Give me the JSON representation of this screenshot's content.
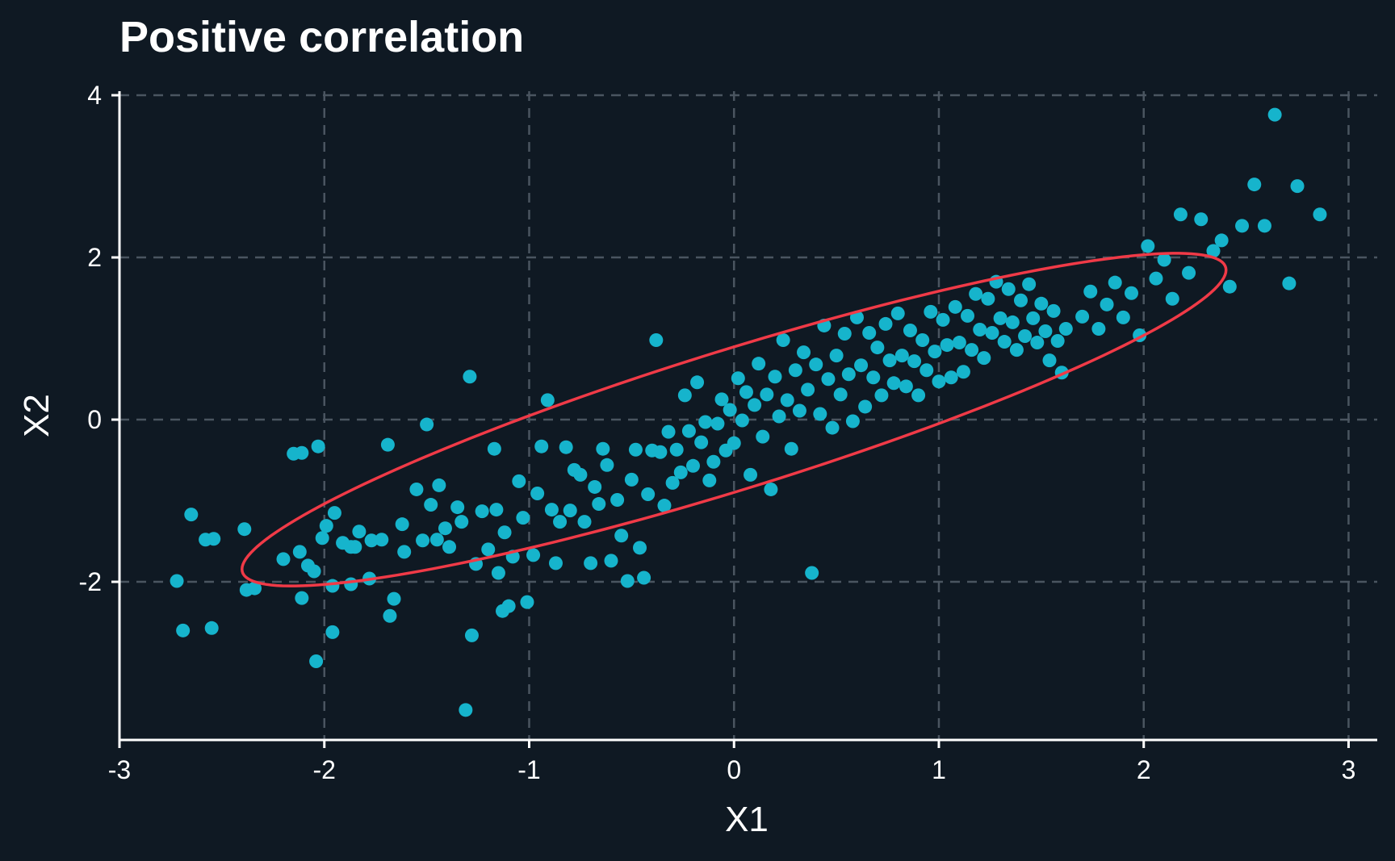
{
  "chart_data": {
    "type": "scatter",
    "title": "Positive correlation",
    "xlabel": "X1",
    "ylabel": "X2",
    "xlim": [
      -3,
      3.14
    ],
    "ylim": [
      -3.95,
      4.05
    ],
    "xticks": [
      -3,
      -2,
      -1,
      0,
      1,
      2,
      3
    ],
    "xtick_labels": [
      "-3",
      "-2",
      "-1",
      "0",
      "1",
      "2",
      "3"
    ],
    "yticks": [
      -2,
      0,
      2,
      4
    ],
    "ytick_labels": [
      "-2",
      "0",
      "2",
      "4"
    ],
    "grid": true,
    "grid_style": "dashed",
    "legend": false,
    "colors": {
      "background": "#0f1923",
      "points": "#16b4cc",
      "ellipse": "#f03a47",
      "grid": "#4a5560",
      "axis": "#ffffff",
      "text": "#ffffff"
    },
    "series": [
      {
        "values_generated": true,
        "points": [
          [
            -2.72,
            -1.99
          ],
          [
            -2.69,
            -2.6
          ],
          [
            -2.65,
            -1.17
          ],
          [
            -2.58,
            -1.48
          ],
          [
            -2.55,
            -2.57
          ],
          [
            -2.54,
            -1.47
          ],
          [
            -2.39,
            -1.35
          ],
          [
            -2.38,
            -2.1
          ],
          [
            -2.34,
            -2.08
          ],
          [
            -2.2,
            -1.72
          ],
          [
            -2.15,
            -0.42
          ],
          [
            -2.12,
            -1.63
          ],
          [
            -2.11,
            -2.2
          ],
          [
            -2.11,
            -0.41
          ],
          [
            -2.08,
            -1.8
          ],
          [
            -2.05,
            -1.87
          ],
          [
            -2.04,
            -2.98
          ],
          [
            -2.03,
            -0.33
          ],
          [
            -2.01,
            -1.46
          ],
          [
            -1.99,
            -1.31
          ],
          [
            -1.96,
            -2.05
          ],
          [
            -1.96,
            -2.62
          ],
          [
            -1.95,
            -1.15
          ],
          [
            -1.91,
            -1.52
          ],
          [
            -1.87,
            -1.57
          ],
          [
            -1.87,
            -2.03
          ],
          [
            -1.85,
            -1.57
          ],
          [
            -1.83,
            -1.38
          ],
          [
            -1.78,
            -1.96
          ],
          [
            -1.77,
            -1.49
          ],
          [
            -1.72,
            -1.48
          ],
          [
            -1.69,
            -0.31
          ],
          [
            -1.68,
            -2.42
          ],
          [
            -1.66,
            -2.21
          ],
          [
            -1.62,
            -1.29
          ],
          [
            -1.61,
            -1.63
          ],
          [
            -1.55,
            -0.86
          ],
          [
            -1.52,
            -1.49
          ],
          [
            -1.5,
            -0.06
          ],
          [
            -1.48,
            -1.05
          ],
          [
            -1.45,
            -1.48
          ],
          [
            -1.44,
            -0.81
          ],
          [
            -1.41,
            -1.34
          ],
          [
            -1.39,
            -1.57
          ],
          [
            -1.35,
            -1.08
          ],
          [
            -1.33,
            -1.26
          ],
          [
            -1.31,
            -3.58
          ],
          [
            -1.29,
            0.53
          ],
          [
            -1.28,
            -2.66
          ],
          [
            -1.26,
            -1.78
          ],
          [
            -1.23,
            -1.13
          ],
          [
            -1.2,
            -1.6
          ],
          [
            -1.17,
            -0.36
          ],
          [
            -1.16,
            -1.11
          ],
          [
            -1.15,
            -1.89
          ],
          [
            -1.13,
            -2.36
          ],
          [
            -1.12,
            -1.39
          ],
          [
            -1.1,
            -2.3
          ],
          [
            -1.08,
            -1.69
          ],
          [
            -1.05,
            -0.76
          ],
          [
            -1.03,
            -1.21
          ],
          [
            -1.01,
            -2.25
          ],
          [
            -0.98,
            -1.67
          ],
          [
            -0.96,
            -0.91
          ],
          [
            -0.94,
            -0.33
          ],
          [
            -0.91,
            0.24
          ],
          [
            -0.89,
            -1.11
          ],
          [
            -0.87,
            -1.77
          ],
          [
            -0.85,
            -1.26
          ],
          [
            -0.82,
            -0.34
          ],
          [
            -0.8,
            -1.12
          ],
          [
            -0.78,
            -0.62
          ],
          [
            -0.75,
            -0.68
          ],
          [
            -0.73,
            -1.26
          ],
          [
            -0.7,
            -1.77
          ],
          [
            -0.68,
            -0.83
          ],
          [
            -0.66,
            -1.04
          ],
          [
            -0.64,
            -0.36
          ],
          [
            -0.62,
            -0.56
          ],
          [
            -0.6,
            -1.74
          ],
          [
            -0.57,
            -0.99
          ],
          [
            -0.55,
            -1.43
          ],
          [
            -0.52,
            -1.99
          ],
          [
            -0.5,
            -0.74
          ],
          [
            -0.48,
            -0.37
          ],
          [
            -0.46,
            -1.58
          ],
          [
            -0.44,
            -1.95
          ],
          [
            -0.42,
            -0.92
          ],
          [
            -0.4,
            -0.38
          ],
          [
            -0.38,
            0.98
          ],
          [
            -0.36,
            -0.4
          ],
          [
            -0.34,
            -1.06
          ],
          [
            -0.32,
            -0.15
          ],
          [
            -0.3,
            -0.78
          ],
          [
            -0.28,
            -0.37
          ],
          [
            -0.26,
            -0.65
          ],
          [
            -0.24,
            0.3
          ],
          [
            -0.22,
            -0.14
          ],
          [
            -0.2,
            -0.57
          ],
          [
            -0.18,
            0.46
          ],
          [
            -0.16,
            -0.28
          ],
          [
            -0.14,
            -0.03
          ],
          [
            -0.12,
            -0.75
          ],
          [
            -0.1,
            -0.52
          ],
          [
            -0.08,
            -0.05
          ],
          [
            -0.06,
            0.25
          ],
          [
            -0.04,
            -0.38
          ],
          [
            -0.02,
            0.12
          ],
          [
            0.0,
            -0.29
          ],
          [
            0.02,
            0.51
          ],
          [
            0.04,
            -0.01
          ],
          [
            0.06,
            0.34
          ],
          [
            0.08,
            -0.68
          ],
          [
            0.1,
            0.18
          ],
          [
            0.12,
            0.69
          ],
          [
            0.14,
            -0.21
          ],
          [
            0.16,
            0.31
          ],
          [
            0.18,
            -0.86
          ],
          [
            0.2,
            0.53
          ],
          [
            0.22,
            0.04
          ],
          [
            0.24,
            0.98
          ],
          [
            0.26,
            0.24
          ],
          [
            0.28,
            -0.36
          ],
          [
            0.3,
            0.61
          ],
          [
            0.32,
            0.11
          ],
          [
            0.34,
            0.83
          ],
          [
            0.36,
            0.37
          ],
          [
            0.38,
            -1.89
          ],
          [
            0.4,
            0.68
          ],
          [
            0.42,
            0.07
          ],
          [
            0.44,
            1.16
          ],
          [
            0.46,
            0.5
          ],
          [
            0.48,
            -0.1
          ],
          [
            0.5,
            0.79
          ],
          [
            0.52,
            0.31
          ],
          [
            0.54,
            1.06
          ],
          [
            0.56,
            0.56
          ],
          [
            0.58,
            -0.02
          ],
          [
            0.6,
            1.26
          ],
          [
            0.62,
            0.67
          ],
          [
            0.64,
            0.16
          ],
          [
            0.66,
            1.07
          ],
          [
            0.68,
            0.52
          ],
          [
            0.7,
            0.89
          ],
          [
            0.72,
            0.3
          ],
          [
            0.74,
            1.18
          ],
          [
            0.76,
            0.73
          ],
          [
            0.78,
            0.45
          ],
          [
            0.8,
            1.31
          ],
          [
            0.82,
            0.79
          ],
          [
            0.84,
            0.41
          ],
          [
            0.86,
            1.1
          ],
          [
            0.88,
            0.72
          ],
          [
            0.9,
            0.3
          ],
          [
            0.92,
            0.98
          ],
          [
            0.94,
            0.61
          ],
          [
            0.96,
            1.33
          ],
          [
            0.98,
            0.84
          ],
          [
            1.0,
            0.47
          ],
          [
            1.02,
            1.23
          ],
          [
            1.04,
            0.92
          ],
          [
            1.06,
            0.52
          ],
          [
            1.08,
            1.39
          ],
          [
            1.1,
            0.95
          ],
          [
            1.12,
            0.59
          ],
          [
            1.14,
            1.28
          ],
          [
            1.16,
            0.86
          ],
          [
            1.18,
            1.55
          ],
          [
            1.2,
            1.11
          ],
          [
            1.22,
            0.76
          ],
          [
            1.24,
            1.49
          ],
          [
            1.26,
            1.07
          ],
          [
            1.28,
            1.7
          ],
          [
            1.3,
            1.25
          ],
          [
            1.32,
            0.96
          ],
          [
            1.34,
            1.61
          ],
          [
            1.36,
            1.2
          ],
          [
            1.38,
            0.86
          ],
          [
            1.4,
            1.47
          ],
          [
            1.42,
            1.03
          ],
          [
            1.44,
            1.67
          ],
          [
            1.46,
            1.25
          ],
          [
            1.48,
            0.95
          ],
          [
            1.5,
            1.43
          ],
          [
            1.52,
            1.09
          ],
          [
            1.54,
            0.73
          ],
          [
            1.56,
            1.34
          ],
          [
            1.58,
            0.97
          ],
          [
            1.6,
            0.58
          ],
          [
            1.62,
            1.12
          ],
          [
            1.7,
            1.27
          ],
          [
            1.74,
            1.58
          ],
          [
            1.78,
            1.12
          ],
          [
            1.82,
            1.42
          ],
          [
            1.86,
            1.69
          ],
          [
            1.9,
            1.26
          ],
          [
            1.94,
            1.56
          ],
          [
            1.98,
            1.04
          ],
          [
            2.02,
            2.14
          ],
          [
            2.06,
            1.74
          ],
          [
            2.1,
            1.97
          ],
          [
            2.14,
            1.49
          ],
          [
            2.18,
            2.53
          ],
          [
            2.22,
            1.81
          ],
          [
            2.28,
            2.47
          ],
          [
            2.34,
            2.08
          ],
          [
            2.38,
            2.21
          ],
          [
            2.42,
            1.64
          ],
          [
            2.48,
            2.39
          ],
          [
            2.54,
            2.9
          ],
          [
            2.59,
            2.39
          ],
          [
            2.64,
            3.76
          ],
          [
            2.71,
            1.68
          ],
          [
            2.75,
            2.88
          ],
          [
            2.86,
            2.53
          ]
        ]
      }
    ],
    "ellipse": {
      "center": [
        0.0,
        0.0
      ],
      "rx": 3.08,
      "ry": 0.7,
      "angle_deg": 40
    }
  }
}
